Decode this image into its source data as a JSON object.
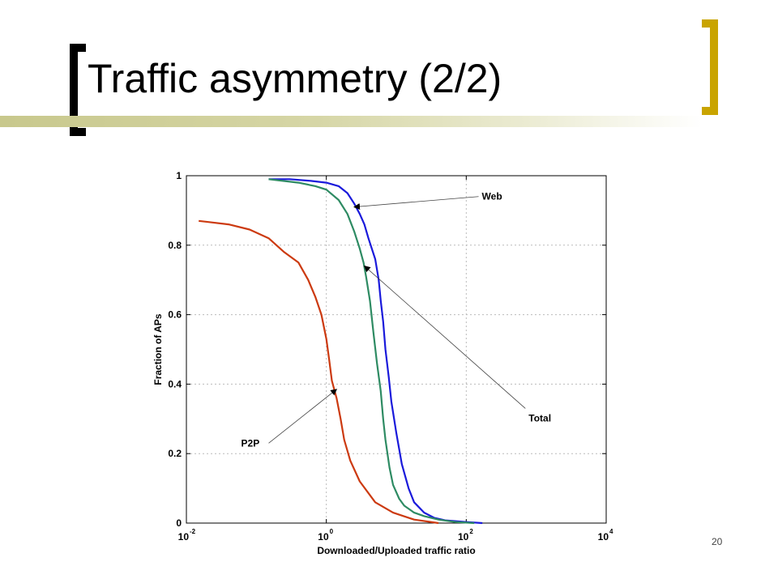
{
  "slide": {
    "title": "Traffic asymmetry (2/2)",
    "page_number": "20"
  },
  "chart_data": {
    "type": "line",
    "xlabel": "Downloaded/Uploaded traffic ratio",
    "ylabel": "Fraction of APs",
    "xscale": "log",
    "xlim": [
      0.01,
      10000
    ],
    "ylim": [
      0,
      1
    ],
    "grid": true,
    "xticks": [
      {
        "value": 0.01,
        "base": "10",
        "exp": "-2"
      },
      {
        "value": 1,
        "base": "10",
        "exp": "0"
      },
      {
        "value": 100,
        "base": "10",
        "exp": "2"
      },
      {
        "value": 10000,
        "base": "10",
        "exp": "4"
      }
    ],
    "yticks": [
      {
        "value": 0,
        "label": "0"
      },
      {
        "value": 0.2,
        "label": "0.2"
      },
      {
        "value": 0.4,
        "label": "0.4"
      },
      {
        "value": 0.6,
        "label": "0.6"
      },
      {
        "value": 0.8,
        "label": "0.8"
      },
      {
        "value": 1,
        "label": "1"
      }
    ],
    "series": [
      {
        "name": "Web",
        "color": "#1a1adb",
        "x": [
          0.15,
          0.3,
          0.6,
          1.0,
          1.5,
          2.0,
          2.5,
          3.0,
          3.5,
          4.0,
          5.0,
          5.6,
          6.0,
          6.5,
          7.0,
          7.8,
          8.5,
          10.0,
          12.0,
          15.0,
          18.0,
          25.0,
          35.0,
          50.0,
          100.0,
          170.0
        ],
        "y": [
          0.99,
          0.99,
          0.985,
          0.98,
          0.97,
          0.95,
          0.92,
          0.89,
          0.86,
          0.82,
          0.76,
          0.7,
          0.64,
          0.58,
          0.5,
          0.42,
          0.35,
          0.26,
          0.17,
          0.1,
          0.06,
          0.03,
          0.015,
          0.008,
          0.003,
          0.0
        ]
      },
      {
        "name": "Total",
        "color": "#2e8b63",
        "x": [
          0.15,
          0.4,
          0.7,
          1.0,
          1.5,
          2.0,
          2.5,
          3.0,
          3.4,
          3.7,
          4.2,
          4.7,
          5.3,
          6.0,
          6.5,
          7.0,
          8.0,
          9.0,
          11.0,
          13.0,
          18.0,
          25.0,
          40.0,
          70.0,
          130.0
        ],
        "y": [
          0.99,
          0.98,
          0.97,
          0.96,
          0.93,
          0.89,
          0.84,
          0.79,
          0.75,
          0.71,
          0.64,
          0.55,
          0.46,
          0.38,
          0.3,
          0.24,
          0.16,
          0.11,
          0.07,
          0.05,
          0.03,
          0.02,
          0.01,
          0.003,
          0.0
        ]
      },
      {
        "name": "P2P",
        "color": "#cc3a10",
        "x": [
          0.015,
          0.04,
          0.08,
          0.15,
          0.25,
          0.4,
          0.55,
          0.7,
          0.85,
          1.0,
          1.1,
          1.2,
          1.4,
          1.6,
          1.8,
          2.2,
          3.0,
          5.0,
          9.0,
          18.0,
          40.0
        ],
        "y": [
          0.87,
          0.86,
          0.845,
          0.82,
          0.78,
          0.75,
          0.7,
          0.65,
          0.6,
          0.53,
          0.47,
          0.41,
          0.36,
          0.3,
          0.24,
          0.18,
          0.12,
          0.06,
          0.03,
          0.01,
          0.0
        ]
      }
    ],
    "annotations": [
      {
        "text": "Web",
        "series": "Web",
        "point": [
          2.5,
          0.91
        ],
        "label_pos": [
          150,
          0.94
        ]
      },
      {
        "text": "Total",
        "series": "Total",
        "point": [
          3.5,
          0.74
        ],
        "label_pos": [
          700,
          0.33
        ]
      },
      {
        "text": "P2P",
        "series": "P2P",
        "point": [
          1.4,
          0.385
        ],
        "label_pos": [
          0.15,
          0.23
        ]
      }
    ]
  }
}
